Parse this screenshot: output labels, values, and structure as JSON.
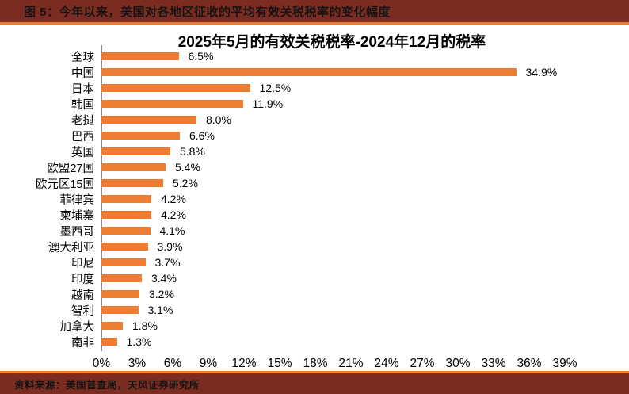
{
  "header": {
    "title": "图 5：今年以来，美国对各地区征收的平均有效关税税率的变化幅度"
  },
  "footer": {
    "source": "资料来源：美国普查局，天风证券研究所"
  },
  "colors": {
    "accent_orange": "#ED7D31",
    "header_maroon": "#7C2B20",
    "axis_gray": "#8A8A8A"
  },
  "chart_data": {
    "type": "bar",
    "orientation": "horizontal",
    "title": "2025年5月的有效关税税率-2024年12月的税率",
    "categories": [
      "全球",
      "中国",
      "日本",
      "韩国",
      "老挝",
      "巴西",
      "英国",
      "欧盟27国",
      "欧元区15国",
      "菲律宾",
      "柬埔寨",
      "墨西哥",
      "澳大利亚",
      "印尼",
      "印度",
      "越南",
      "智利",
      "加拿大",
      "南非"
    ],
    "values": [
      6.5,
      34.9,
      12.5,
      11.9,
      8.0,
      6.6,
      5.8,
      5.4,
      5.2,
      4.2,
      4.2,
      4.1,
      3.9,
      3.7,
      3.4,
      3.2,
      3.1,
      1.8,
      1.3
    ],
    "value_labels": [
      "6.5%",
      "34.9%",
      "12.5%",
      "11.9%",
      "8.0%",
      "6.6%",
      "5.8%",
      "5.4%",
      "5.2%",
      "4.2%",
      "4.2%",
      "4.1%",
      "3.9%",
      "3.7%",
      "3.4%",
      "3.2%",
      "3.1%",
      "1.8%",
      "1.3%"
    ],
    "xlabel": "",
    "ylabel": "",
    "xlim": [
      0,
      39
    ],
    "x_tick_values": [
      0,
      3,
      6,
      9,
      12,
      15,
      18,
      21,
      24,
      27,
      30,
      33,
      36,
      39
    ],
    "x_ticks": [
      "0%",
      "3%",
      "6%",
      "9%",
      "12%",
      "15%",
      "18%",
      "21%",
      "24%",
      "27%",
      "30%",
      "33%",
      "36%",
      "39%"
    ],
    "grid": false,
    "legend": false,
    "bar_color": "#ED7D31"
  }
}
